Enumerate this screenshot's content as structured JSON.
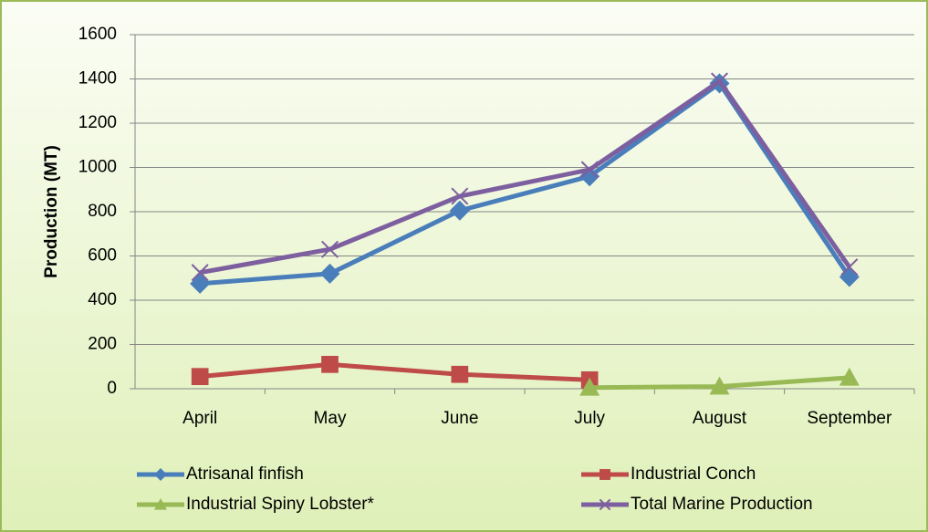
{
  "chart_data": {
    "type": "line",
    "y_label": "Production (MT)",
    "categories": [
      "April",
      "May",
      "June",
      "July",
      "August",
      "September"
    ],
    "series": [
      {
        "name": "Atrisanal finfish",
        "color": "#4a7ebb",
        "marker": "diamond",
        "values": [
          475,
          520,
          805,
          960,
          1380,
          505
        ]
      },
      {
        "name": "Industrial Conch",
        "color": "#be4b48",
        "marker": "square",
        "values": [
          55,
          110,
          65,
          40,
          null,
          null
        ]
      },
      {
        "name": "Industrial Spiny Lobster*",
        "color": "#98b954",
        "marker": "triangle",
        "values": [
          null,
          null,
          null,
          5,
          10,
          50
        ]
      },
      {
        "name": "Total Marine Production",
        "color": "#7d5fa0",
        "marker": "x",
        "values": [
          525,
          630,
          870,
          990,
          1390,
          550
        ]
      }
    ],
    "ylim": [
      0,
      1600
    ],
    "yticks": [
      0,
      200,
      400,
      600,
      800,
      1000,
      1200,
      1400,
      1600
    ],
    "grid": true,
    "legend": "bottom"
  }
}
